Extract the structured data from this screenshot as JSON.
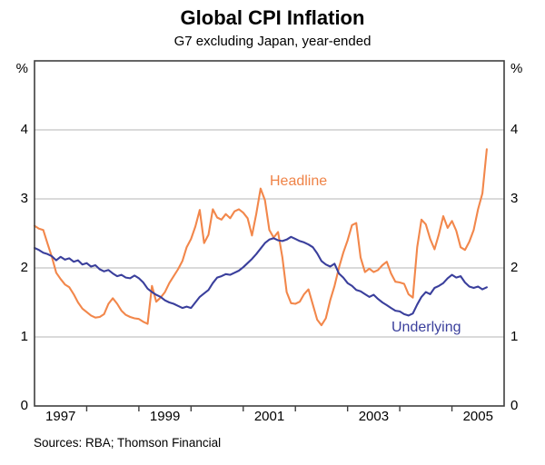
{
  "title": "Global CPI Inflation",
  "subtitle": "G7 excluding Japan, year-ended",
  "footer": "Sources: RBA; Thomson Financial",
  "axis": {
    "unit_label": "%",
    "yticks_labeled": [
      "4",
      "3",
      "2",
      "1",
      "0"
    ],
    "ytick_values": [
      4,
      3,
      2,
      1,
      0
    ],
    "xtick_labels": [
      "1997",
      "1999",
      "2001",
      "2003",
      "2005"
    ],
    "xtick_label_years": [
      1997,
      1999,
      2001,
      2003,
      2005
    ],
    "year_boundary_ticks": [
      1998,
      1999,
      2000,
      2001,
      2002,
      2003,
      2004,
      2005
    ]
  },
  "colors": {
    "headline": "#f2874b",
    "headline_text": "#ef8347",
    "underlying": "#3a3f9c",
    "gridline": "#b5b5b5",
    "frame": "#3f3f3f"
  },
  "chart_data": {
    "type": "line",
    "title": "Global CPI Inflation",
    "subtitle": "G7 excluding Japan, year-ended",
    "ylabel": "%",
    "xlim": [
      1997,
      2006
    ],
    "ylim": [
      0,
      5
    ],
    "gridlines": [
      1,
      2,
      3,
      4
    ],
    "x_start_year": 1997,
    "frequency": "monthly",
    "legend_position": "inline-labels",
    "series": [
      {
        "name": "Headline",
        "color": "#f2874b",
        "values": [
          2.61,
          2.57,
          2.55,
          2.35,
          2.16,
          1.93,
          1.84,
          1.76,
          1.72,
          1.62,
          1.5,
          1.41,
          1.36,
          1.31,
          1.28,
          1.29,
          1.33,
          1.48,
          1.56,
          1.48,
          1.38,
          1.32,
          1.29,
          1.27,
          1.26,
          1.22,
          1.19,
          1.74,
          1.51,
          1.57,
          1.65,
          1.78,
          1.88,
          1.98,
          2.1,
          2.3,
          2.42,
          2.6,
          2.84,
          2.36,
          2.48,
          2.85,
          2.73,
          2.7,
          2.78,
          2.72,
          2.82,
          2.85,
          2.8,
          2.72,
          2.47,
          2.78,
          3.15,
          2.98,
          2.55,
          2.44,
          2.52,
          2.15,
          1.65,
          1.49,
          1.48,
          1.51,
          1.62,
          1.69,
          1.47,
          1.25,
          1.17,
          1.27,
          1.53,
          1.74,
          2.0,
          2.22,
          2.4,
          2.62,
          2.65,
          2.15,
          1.94,
          1.99,
          1.94,
          1.97,
          2.04,
          2.09,
          1.92,
          1.8,
          1.79,
          1.77,
          1.62,
          1.57,
          2.3,
          2.7,
          2.63,
          2.42,
          2.27,
          2.49,
          2.75,
          2.58,
          2.68,
          2.54,
          2.3,
          2.26,
          2.38,
          2.55,
          2.85,
          3.08,
          3.72
        ]
      },
      {
        "name": "Underlying",
        "color": "#3a3f9c",
        "values": [
          2.29,
          2.26,
          2.22,
          2.2,
          2.17,
          2.11,
          2.16,
          2.12,
          2.14,
          2.09,
          2.11,
          2.05,
          2.07,
          2.02,
          2.04,
          1.98,
          1.95,
          1.97,
          1.92,
          1.88,
          1.9,
          1.86,
          1.85,
          1.89,
          1.85,
          1.79,
          1.7,
          1.65,
          1.61,
          1.58,
          1.53,
          1.5,
          1.48,
          1.45,
          1.42,
          1.44,
          1.42,
          1.5,
          1.58,
          1.63,
          1.68,
          1.78,
          1.86,
          1.88,
          1.91,
          1.9,
          1.93,
          1.96,
          2.01,
          2.07,
          2.13,
          2.2,
          2.28,
          2.36,
          2.41,
          2.43,
          2.4,
          2.39,
          2.41,
          2.45,
          2.42,
          2.39,
          2.37,
          2.34,
          2.3,
          2.21,
          2.1,
          2.05,
          2.02,
          2.06,
          1.92,
          1.86,
          1.78,
          1.74,
          1.68,
          1.66,
          1.62,
          1.58,
          1.61,
          1.55,
          1.5,
          1.46,
          1.42,
          1.38,
          1.37,
          1.33,
          1.31,
          1.34,
          1.47,
          1.58,
          1.65,
          1.62,
          1.71,
          1.74,
          1.78,
          1.85,
          1.9,
          1.86,
          1.88,
          1.79,
          1.73,
          1.71,
          1.73,
          1.69,
          1.72
        ]
      }
    ]
  }
}
